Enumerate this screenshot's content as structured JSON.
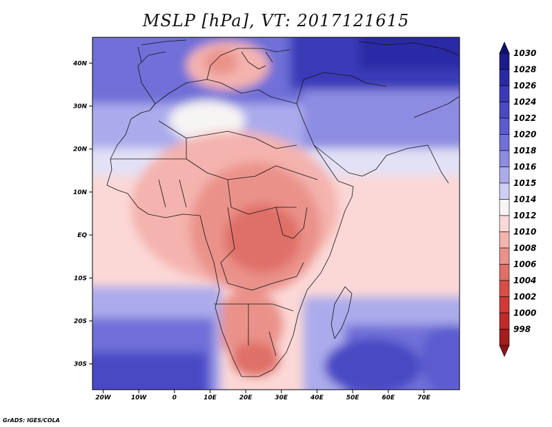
{
  "title": "MSLP [hPa], VT: 2017121615",
  "credit": "GrADS: IGES/COLA",
  "map": {
    "lon_range": [
      -23,
      80
    ],
    "lat_range": [
      -36,
      46
    ],
    "lat_ticks": [
      {
        "lat": 40,
        "label": "40N"
      },
      {
        "lat": 30,
        "label": "30N"
      },
      {
        "lat": 20,
        "label": "20N"
      },
      {
        "lat": 10,
        "label": "10N"
      },
      {
        "lat": 0,
        "label": "EQ"
      },
      {
        "lat": -10,
        "label": "10S"
      },
      {
        "lat": -20,
        "label": "20S"
      },
      {
        "lat": -30,
        "label": "30S"
      }
    ],
    "lon_ticks": [
      {
        "lon": -20,
        "label": "20W"
      },
      {
        "lon": -10,
        "label": "10W"
      },
      {
        "lon": 0,
        "label": "0"
      },
      {
        "lon": 10,
        "label": "10E"
      },
      {
        "lon": 20,
        "label": "20E"
      },
      {
        "lon": 30,
        "label": "30E"
      },
      {
        "lon": 40,
        "label": "40E"
      },
      {
        "lon": 50,
        "label": "50E"
      },
      {
        "lon": 60,
        "label": "60E"
      },
      {
        "lon": 70,
        "label": "70E"
      }
    ]
  },
  "colorbar": {
    "levels": [
      {
        "label": "1030",
        "color": "#1c1a8c"
      },
      {
        "label": "1028",
        "color": "#2a2aa6"
      },
      {
        "label": "1026",
        "color": "#3a3ab8"
      },
      {
        "label": "1024",
        "color": "#4a4ac4"
      },
      {
        "label": "1022",
        "color": "#5c5ccf"
      },
      {
        "label": "1020",
        "color": "#7070d8"
      },
      {
        "label": "1018",
        "color": "#8c8ce2"
      },
      {
        "label": "1016",
        "color": "#ababec"
      },
      {
        "label": "1015",
        "color": "#cfcff5"
      },
      {
        "label": "1014",
        "color": "#f7f4f4"
      },
      {
        "label": "1012",
        "color": "#fbd8d6"
      },
      {
        "label": "1010",
        "color": "#f4b3ae"
      },
      {
        "label": "1008",
        "color": "#ea928a"
      },
      {
        "label": "1006",
        "color": "#df7067"
      },
      {
        "label": "1004",
        "color": "#d84e47"
      },
      {
        "label": "1002",
        "color": "#cf3a36"
      },
      {
        "label": "1000",
        "color": "#c02a28"
      },
      {
        "label": "998",
        "color": "#a51c1c"
      }
    ],
    "top_cap_color": "#101070",
    "bottom_cap_color": "#8a1414"
  }
}
